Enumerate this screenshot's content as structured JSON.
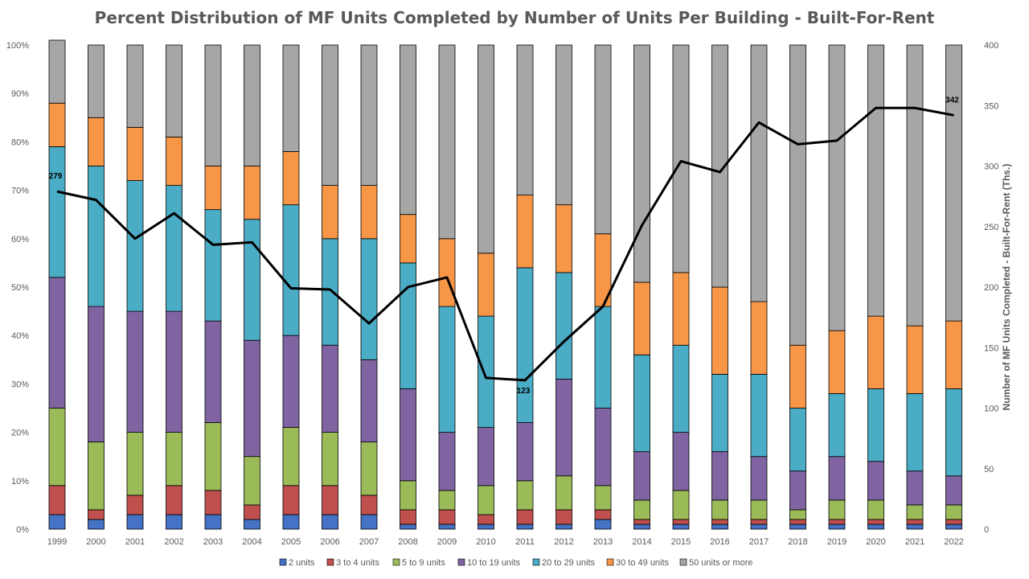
{
  "chart_data": {
    "type": "bar",
    "title": "Percent Distribution of MF Units Completed by Number of Units Per Building - Built-For-Rent",
    "xlabel": "",
    "ylabel": "",
    "y2label": "Number of MF Units Completed - Built-For-Rent (Ths.)",
    "stacked": true,
    "ylim": [
      0,
      100
    ],
    "y2lim": [
      0,
      400
    ],
    "y_ticks": [
      "0%",
      "10%",
      "20%",
      "30%",
      "40%",
      "50%",
      "60%",
      "70%",
      "80%",
      "90%",
      "100%"
    ],
    "y2_ticks": [
      "0",
      "50",
      "100",
      "150",
      "200",
      "250",
      "300",
      "350",
      "400"
    ],
    "categories": [
      "1999",
      "2000",
      "2001",
      "2002",
      "2003",
      "2004",
      "2005",
      "2006",
      "2007",
      "2008",
      "2009",
      "2010",
      "2011",
      "2012",
      "2013",
      "2014",
      "2015",
      "2016",
      "2017",
      "2018",
      "2019",
      "2020",
      "2021",
      "2022"
    ],
    "series": [
      {
        "name": "2 units",
        "color": "#4472C4",
        "values": [
          3,
          2,
          3,
          3,
          3,
          2,
          3,
          3,
          3,
          1,
          1,
          1,
          1,
          1,
          2,
          1,
          1,
          1,
          1,
          1,
          1,
          1,
          1,
          1
        ]
      },
      {
        "name": "3 to 4 units",
        "color": "#C0504D",
        "values": [
          6,
          2,
          4,
          6,
          5,
          3,
          6,
          6,
          4,
          3,
          3,
          2,
          3,
          3,
          2,
          1,
          1,
          1,
          1,
          1,
          1,
          1,
          1,
          1
        ]
      },
      {
        "name": "5 to 9 units",
        "color": "#9BBB59",
        "values": [
          16,
          14,
          13,
          11,
          14,
          10,
          12,
          11,
          11,
          6,
          4,
          6,
          6,
          7,
          5,
          4,
          6,
          4,
          4,
          2,
          4,
          4,
          3,
          3
        ]
      },
      {
        "name": "10 to 19 units",
        "color": "#8064A2",
        "values": [
          27,
          28,
          25,
          25,
          21,
          24,
          19,
          18,
          17,
          19,
          12,
          12,
          12,
          20,
          16,
          10,
          12,
          10,
          9,
          8,
          9,
          8,
          7,
          6
        ]
      },
      {
        "name": "20 to 29 units",
        "color": "#4BACC6",
        "values": [
          27,
          29,
          27,
          26,
          23,
          25,
          27,
          22,
          25,
          26,
          26,
          23,
          32,
          22,
          21,
          20,
          18,
          16,
          17,
          13,
          13,
          15,
          16,
          18
        ]
      },
      {
        "name": "30 to 49 units",
        "color": "#F79646",
        "values": [
          9,
          10,
          11,
          10,
          9,
          11,
          11,
          11,
          11,
          10,
          14,
          13,
          15,
          14,
          15,
          15,
          15,
          18,
          15,
          13,
          13,
          15,
          14,
          14
        ]
      },
      {
        "name": "50 units or more",
        "color": "#A6A6A6",
        "values": [
          13,
          15,
          17,
          19,
          25,
          25,
          22,
          29,
          29,
          35,
          40,
          43,
          31,
          33,
          39,
          49,
          47,
          50,
          53,
          62,
          59,
          56,
          58,
          57
        ]
      }
    ],
    "line": {
      "name": "Number of MF Units Completed - Built-For-Rent (Ths.)",
      "color": "#000000",
      "axis": "right",
      "values": [
        279,
        272,
        240,
        261,
        235,
        237,
        199,
        198,
        170,
        200,
        208,
        125,
        123,
        155,
        184,
        251,
        304,
        295,
        336,
        318,
        321,
        348,
        348,
        342
      ]
    },
    "annotations": [
      {
        "category": "1999",
        "text": "279"
      },
      {
        "category": "2011",
        "text": "123"
      },
      {
        "category": "2022",
        "text": "342"
      }
    ],
    "legend_position": "bottom",
    "grid": false
  }
}
